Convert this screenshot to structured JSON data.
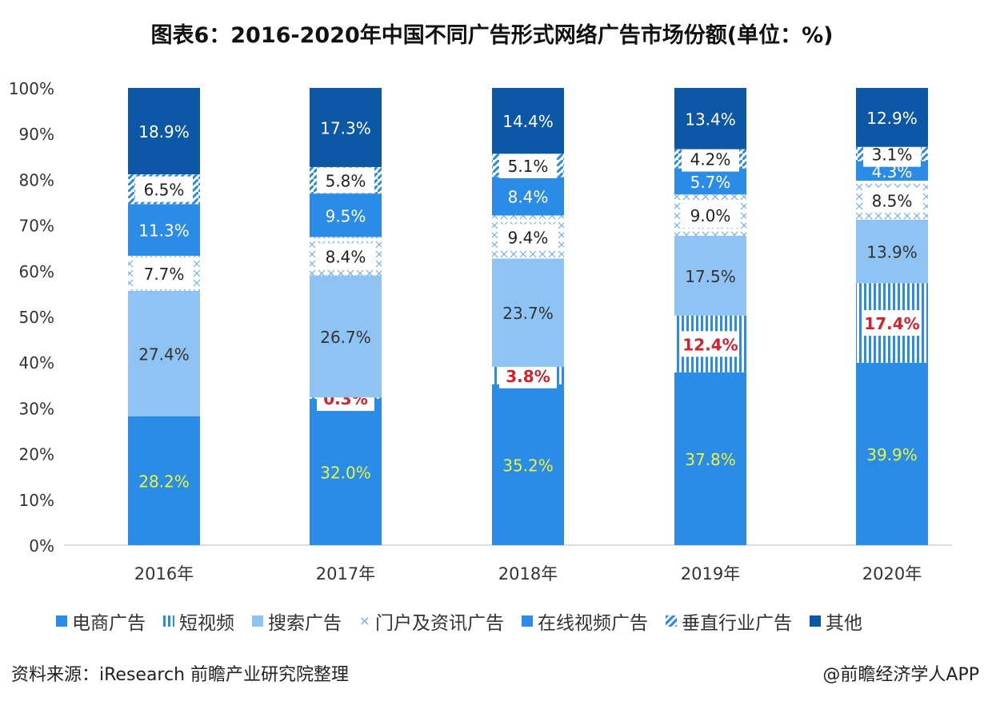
{
  "chart_data": {
    "type": "bar",
    "stacked": true,
    "title": "图表6：2016-2020年中国不同广告形式网络广告市场份额(单位：%)",
    "categories": [
      "2016年",
      "2017年",
      "2018年",
      "2019年",
      "2020年"
    ],
    "ylim": [
      0,
      100
    ],
    "yticks": [
      "0%",
      "10%",
      "20%",
      "30%",
      "40%",
      "50%",
      "60%",
      "70%",
      "80%",
      "90%",
      "100%"
    ],
    "legend_position": "bottom",
    "series": [
      {
        "name": "电商广告",
        "values": [
          28.2,
          32.0,
          35.2,
          37.8,
          39.9
        ],
        "labels": [
          "28.2%",
          "32.0%",
          "35.2%",
          "37.8%",
          "39.9%"
        ],
        "color": "#2a8ce6",
        "label_color": "#e8f53c"
      },
      {
        "name": "短视频",
        "values": [
          0,
          0.3,
          3.8,
          12.4,
          17.4
        ],
        "labels": [
          "",
          "0.3%",
          "3.8%",
          "12.4%",
          "17.4%"
        ],
        "color": "#2a8ce6",
        "pattern": "vertical-stripes",
        "label_color": "#d9202a"
      },
      {
        "name": "搜索广告",
        "values": [
          27.4,
          26.7,
          23.7,
          17.5,
          13.9
        ],
        "labels": [
          "27.4%",
          "26.7%",
          "23.7%",
          "17.5%",
          "13.9%"
        ],
        "color": "#8fc3f3",
        "label_color": "#333333"
      },
      {
        "name": "门户及资讯广告",
        "values": [
          7.7,
          8.4,
          9.4,
          9.0,
          8.5
        ],
        "labels": [
          "7.7%",
          "8.4%",
          "9.4%",
          "9.0%",
          "8.5%"
        ],
        "color": "#6aaee8",
        "pattern": "cross",
        "label_color": "#222222"
      },
      {
        "name": "在线视频广告",
        "values": [
          11.3,
          9.5,
          8.4,
          5.7,
          4.3
        ],
        "labels": [
          "11.3%",
          "9.5%",
          "8.4%",
          "5.7%",
          "4.3%"
        ],
        "color": "#2a8ce6",
        "label_color": "#ffffff"
      },
      {
        "name": "垂直行业广告",
        "values": [
          6.5,
          5.8,
          5.1,
          4.2,
          3.1
        ],
        "labels": [
          "6.5%",
          "5.8%",
          "5.1%",
          "4.2%",
          "3.1%"
        ],
        "color": "#2a8ce6",
        "pattern": "diagonal",
        "label_color": "#222222"
      },
      {
        "name": "其他",
        "values": [
          18.9,
          17.3,
          14.4,
          13.4,
          12.9
        ],
        "labels": [
          "18.9%",
          "17.3%",
          "14.4%",
          "13.4%",
          "12.9%"
        ],
        "color": "#0d58a6",
        "label_color": "#ffffff"
      }
    ]
  },
  "footer": {
    "source": "资料来源：iResearch 前瞻产业研究院整理",
    "brand": "@前瞻经济学人APP"
  }
}
